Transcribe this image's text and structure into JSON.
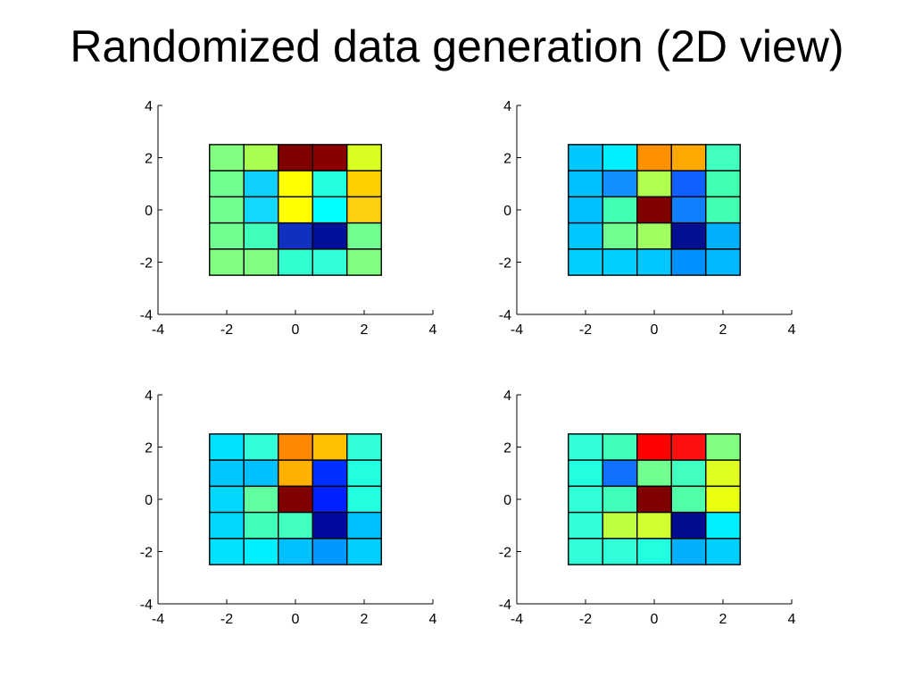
{
  "slide": {
    "title": "Randomized data generation (2D view)"
  },
  "chart_data": [
    {
      "type": "heatmap",
      "title": "",
      "xlabel": "",
      "ylabel": "",
      "xlim": [
        -4,
        4
      ],
      "ylim": [
        -4,
        4
      ],
      "xticks": [
        "-4",
        "-2",
        "0",
        "2",
        "4"
      ],
      "yticks": [
        "-4",
        "-2",
        "0",
        "2",
        "4"
      ],
      "x_edges": [
        -2.5,
        -1.5,
        -0.5,
        0.5,
        1.5,
        2.5
      ],
      "y_edges": [
        -2.5,
        -1.5,
        -0.5,
        0.5,
        1.5,
        2.5
      ],
      "grid": false,
      "cell_colors": [
        [
          "#80ff80",
          "#a8ff50",
          "#800000",
          "#8a0000",
          "#d8ff20"
        ],
        [
          "#70ff90",
          "#10d0ff",
          "#ffff00",
          "#20ffe0",
          "#ffd000"
        ],
        [
          "#70ff90",
          "#10d8ff",
          "#ffff00",
          "#00ffff",
          "#ffd010"
        ],
        [
          "#70ff90",
          "#40ffb8",
          "#1030c0",
          "#00109a",
          "#70ff90"
        ],
        [
          "#80ff80",
          "#80ff80",
          "#30ffd0",
          "#30ffd8",
          "#80ff80"
        ]
      ]
    },
    {
      "type": "heatmap",
      "title": "",
      "xlabel": "",
      "ylabel": "",
      "xlim": [
        -4,
        4
      ],
      "ylim": [
        -4,
        4
      ],
      "xticks": [
        "-4",
        "-2",
        "0",
        "2",
        "4"
      ],
      "yticks": [
        "-4",
        "-2",
        "0",
        "2",
        "4"
      ],
      "x_edges": [
        -2.5,
        -1.5,
        -0.5,
        0.5,
        1.5,
        2.5
      ],
      "y_edges": [
        -2.5,
        -1.5,
        -0.5,
        0.5,
        1.5,
        2.5
      ],
      "grid": false,
      "cell_colors": [
        [
          "#00c8ff",
          "#00f0ff",
          "#ff9000",
          "#ffa800",
          "#40ffc0"
        ],
        [
          "#00c0ff",
          "#1090ff",
          "#b0ff50",
          "#1060ff",
          "#40ffb0"
        ],
        [
          "#00c0ff",
          "#40ffb0",
          "#800000",
          "#1080ff",
          "#40ffb0"
        ],
        [
          "#00c8ff",
          "#70ff90",
          "#a0ff60",
          "#001090",
          "#00b0ff"
        ],
        [
          "#00d0ff",
          "#00d0ff",
          "#00c8ff",
          "#0090ff",
          "#00b8ff"
        ]
      ]
    },
    {
      "type": "heatmap",
      "title": "",
      "xlabel": "",
      "ylabel": "",
      "xlim": [
        -4,
        4
      ],
      "ylim": [
        -4,
        4
      ],
      "xticks": [
        "-4",
        "-2",
        "0",
        "2",
        "4"
      ],
      "yticks": [
        "-4",
        "-2",
        "0",
        "2",
        "4"
      ],
      "x_edges": [
        -2.5,
        -1.5,
        -0.5,
        0.5,
        1.5,
        2.5
      ],
      "y_edges": [
        -2.5,
        -1.5,
        -0.5,
        0.5,
        1.5,
        2.5
      ],
      "grid": false,
      "cell_colors": [
        [
          "#00e0ff",
          "#30ffd8",
          "#ff8800",
          "#ffc000",
          "#30ffd8"
        ],
        [
          "#00c8ff",
          "#00c0ff",
          "#ffb000",
          "#0030ff",
          "#20ffe0"
        ],
        [
          "#00d8ff",
          "#60ffa0",
          "#800000",
          "#0020ff",
          "#20ffe0"
        ],
        [
          "#00d8ff",
          "#40ffb8",
          "#40ffc0",
          "#0008a0",
          "#00c0ff"
        ],
        [
          "#00e0ff",
          "#00f0ff",
          "#00c0ff",
          "#0098ff",
          "#00d0ff"
        ]
      ]
    },
    {
      "type": "heatmap",
      "title": "",
      "xlabel": "",
      "ylabel": "",
      "xlim": [
        -4,
        4
      ],
      "ylim": [
        -4,
        4
      ],
      "xticks": [
        "-4",
        "-2",
        "0",
        "2",
        "4"
      ],
      "yticks": [
        "-4",
        "-2",
        "0",
        "2",
        "4"
      ],
      "x_edges": [
        -2.5,
        -1.5,
        -0.5,
        0.5,
        1.5,
        2.5
      ],
      "y_edges": [
        -2.5,
        -1.5,
        -0.5,
        0.5,
        1.5,
        2.5
      ],
      "grid": false,
      "cell_colors": [
        [
          "#30ffd8",
          "#40ffb8",
          "#ff0000",
          "#ff1010",
          "#80ff80"
        ],
        [
          "#20ffe0",
          "#1070ff",
          "#70ff90",
          "#40ffc0",
          "#e0ff20"
        ],
        [
          "#30ffd8",
          "#40ffb8",
          "#800000",
          "#50ffa8",
          "#e8ff10"
        ],
        [
          "#30ffd8",
          "#c0ff40",
          "#d0ff30",
          "#000c90",
          "#00f0ff"
        ],
        [
          "#30ffd8",
          "#30ffd8",
          "#20ffe0",
          "#00b0ff",
          "#00d0ff"
        ]
      ]
    }
  ]
}
